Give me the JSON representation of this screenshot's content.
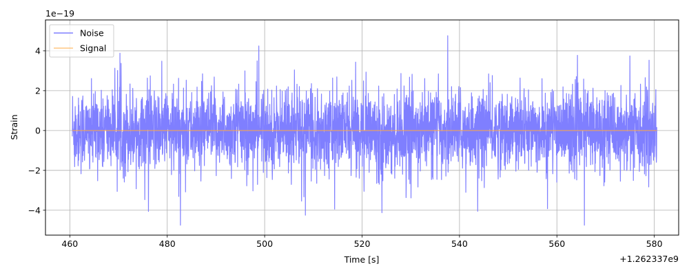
{
  "chart_data": {
    "type": "line",
    "xlabel": "Time [s]",
    "ylabel": "Strain",
    "x_offset_label": "+1.262337e9",
    "y_scale_label": "1e−19",
    "xlim": [
      455,
      585
    ],
    "ylim": [
      -5.25,
      5.55
    ],
    "xticks": [
      460,
      480,
      500,
      520,
      540,
      560,
      580
    ],
    "yticks": [
      -4,
      -2,
      0,
      2,
      4
    ],
    "ytick_labels": [
      "−4",
      "−2",
      "0",
      "2",
      "4"
    ],
    "grid": true,
    "legend_position": "upper-left",
    "series": [
      {
        "name": "Noise",
        "color": "#7f7fff",
        "x_range": [
          460.5,
          580.5
        ],
        "y_range": [
          -4.75,
          5.0
        ],
        "typical_envelope": [
          -2.5,
          2.5
        ],
        "values": []
      },
      {
        "name": "Signal",
        "color": "#ffa940",
        "x_range": [
          460.5,
          580.5
        ],
        "values": [
          0,
          0
        ]
      }
    ]
  }
}
